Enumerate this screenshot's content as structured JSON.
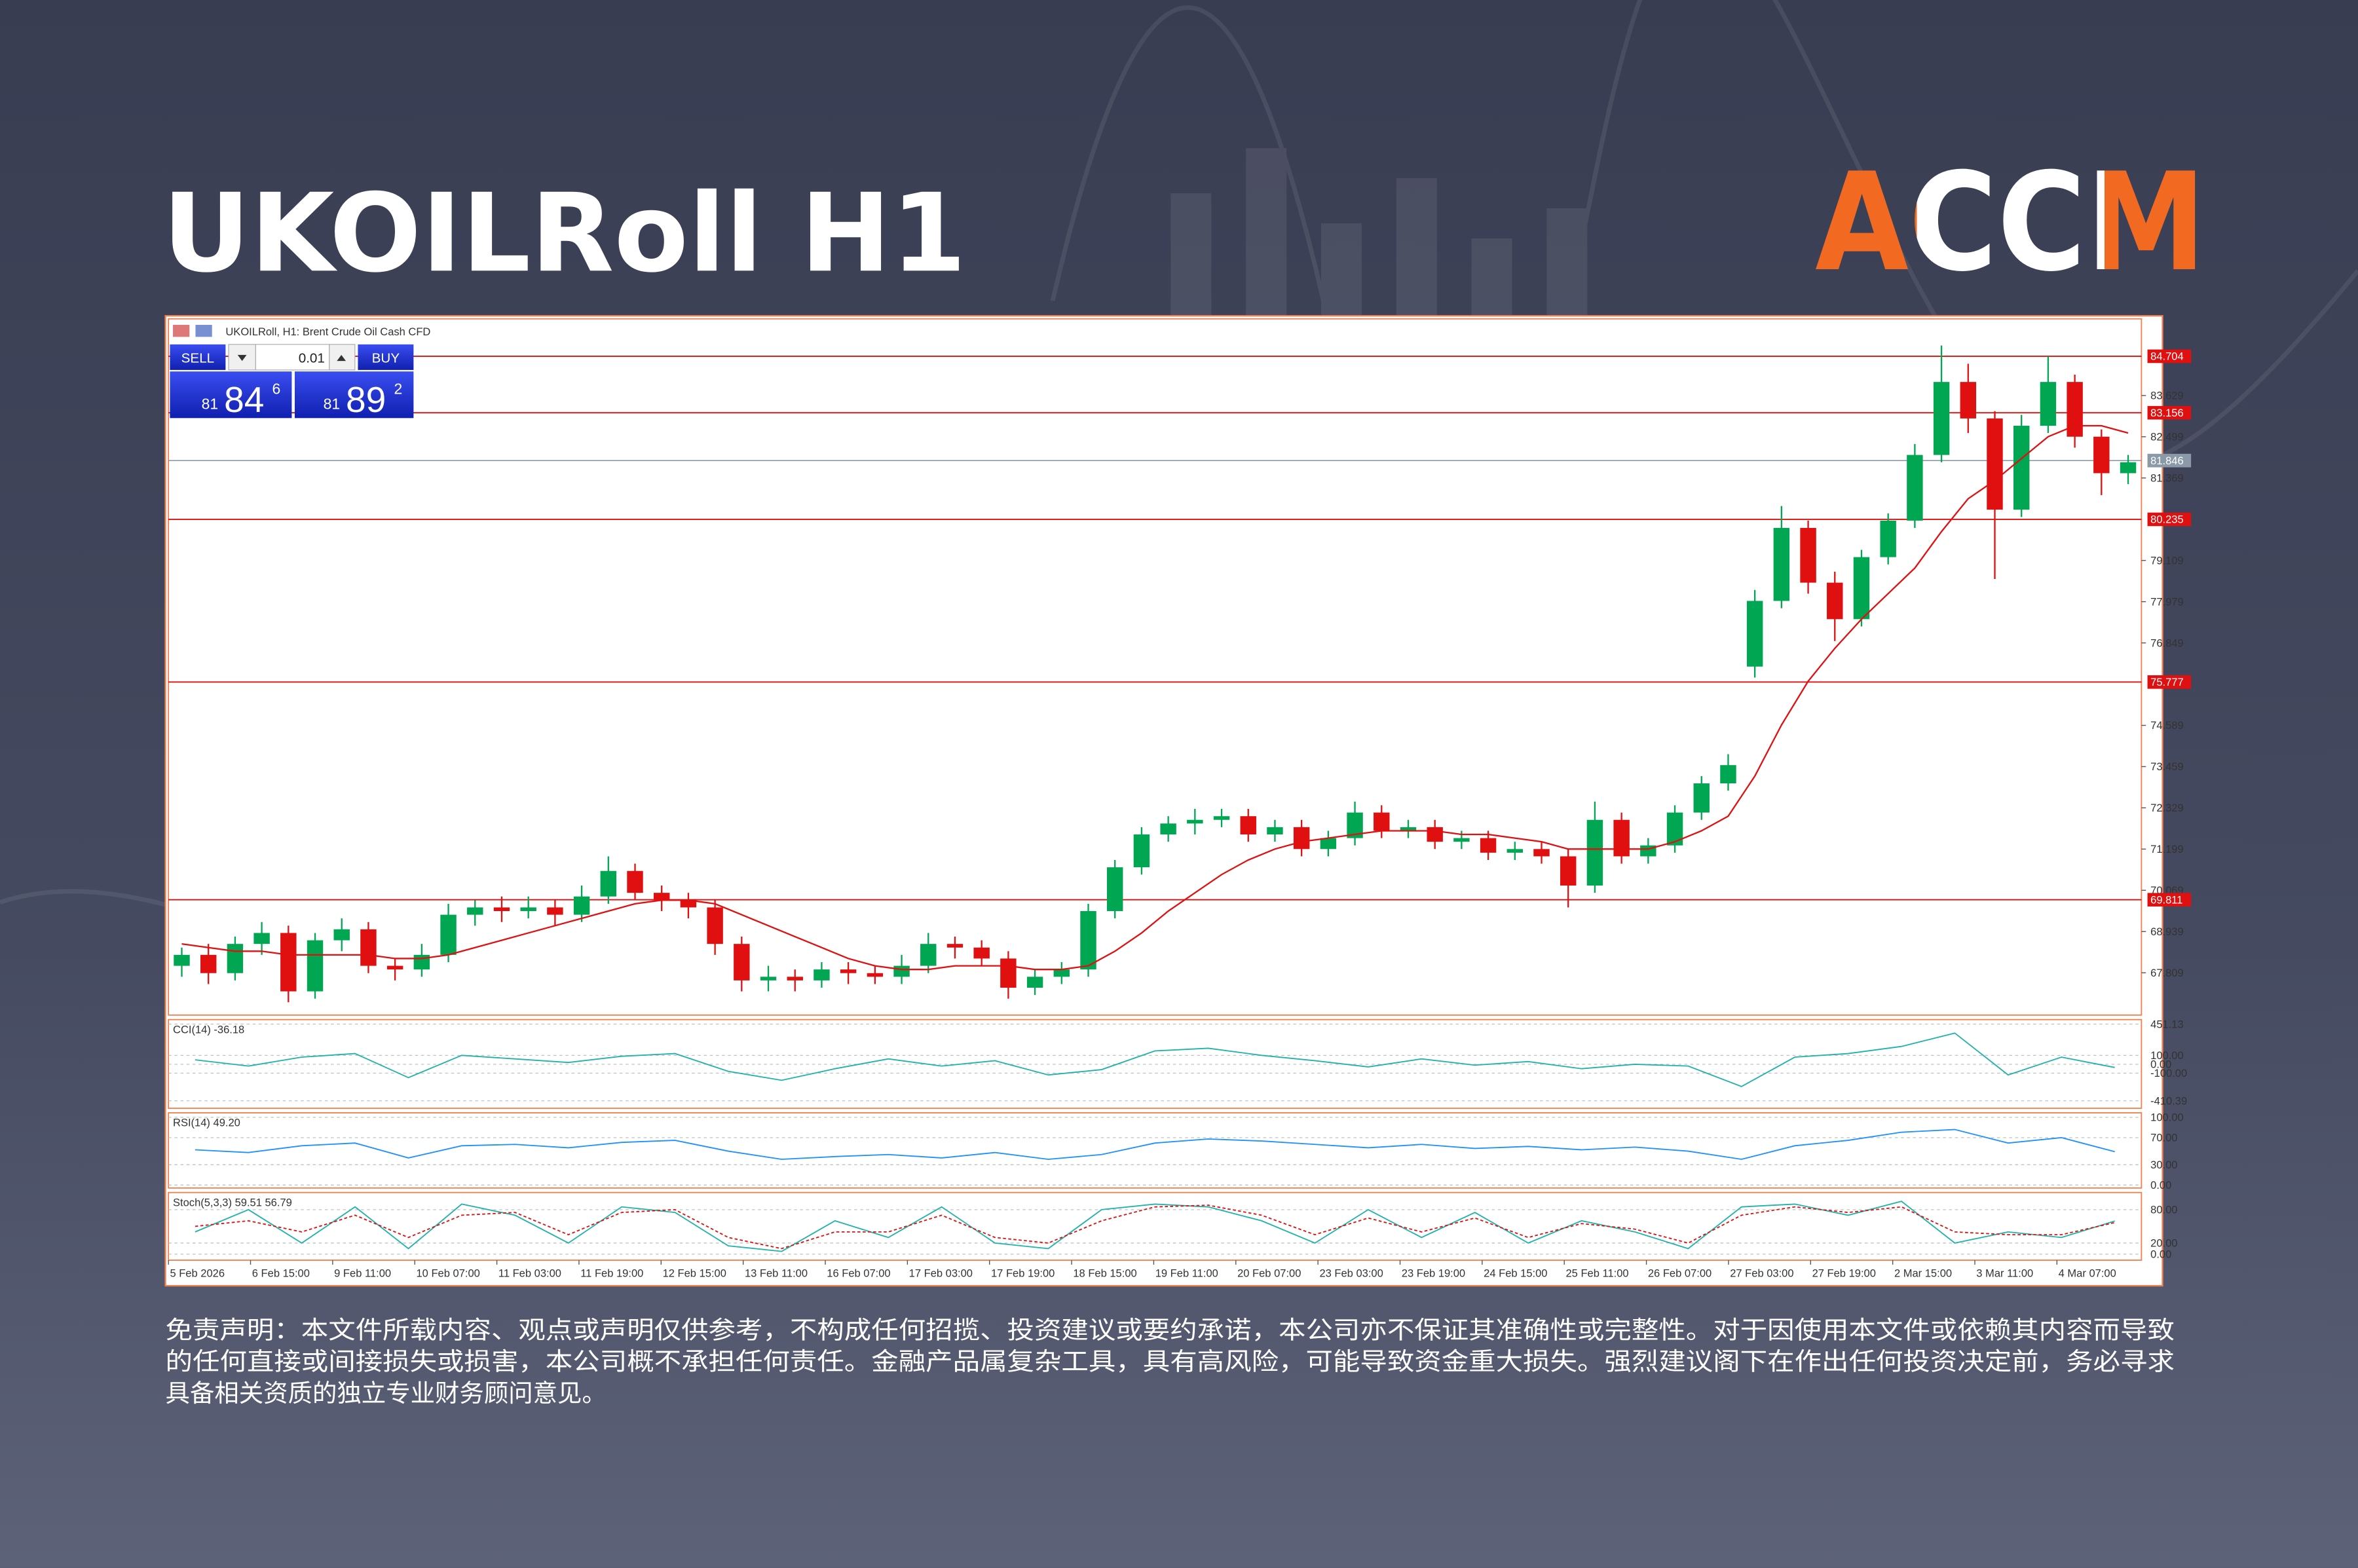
{
  "header": {
    "title": "UKOILRoll H1",
    "logo": "ACCM"
  },
  "disclaimer": [
    "免责声明：本文件所载内容、观点或声明仅供参考，不构成任何招揽、投资建议或要约承诺，本公司亦不保证其准确性或完整性。对于因使用本文件或依赖其内容而导致",
    "的任何直接或间接损失或损害，本公司概不承担任何责任。金融产品属复杂工具，具有高风险，可能导致资金重大损失。强烈建议阁下在作出任何投资决定前，务必寻求",
    "具备相关资质的独立专业财务顾问意见。"
  ],
  "trade_panel": {
    "sell": "SELL",
    "lot": "0.01",
    "buy": "BUY",
    "sell_price": {
      "prefix": "81",
      "big": "84",
      "sup": "6"
    },
    "buy_price": {
      "prefix": "81",
      "big": "89",
      "sup": "2"
    }
  },
  "chart_data": {
    "type": "candlestick",
    "title": "UKOILRoll, H1: Brent Crude Oil Cash CFD",
    "up_color": "#00a651",
    "down_color": "#e01010",
    "candles": {
      "open": [
        68.0,
        68.3,
        67.8,
        68.6,
        68.9,
        67.3,
        68.7,
        69.0,
        68.0,
        67.9,
        68.3,
        69.4,
        69.6,
        69.5,
        69.6,
        69.4,
        69.9,
        70.6,
        70.0,
        69.8,
        69.6,
        68.6,
        67.6,
        67.7,
        67.6,
        67.9,
        67.8,
        67.7,
        68.0,
        68.6,
        68.5,
        68.2,
        67.4,
        67.7,
        67.9,
        69.5,
        70.7,
        71.6,
        71.9,
        72.0,
        72.1,
        71.6,
        71.8,
        71.2,
        71.5,
        72.2,
        71.7,
        71.8,
        71.4,
        71.5,
        71.1,
        71.2,
        71.0,
        70.2,
        72.0,
        71.0,
        71.3,
        72.2,
        73.0,
        76.2,
        78.0,
        80.0,
        78.5,
        77.5,
        79.2,
        80.2,
        82.0,
        84.0,
        83.0,
        80.5,
        82.8,
        84.0,
        82.5,
        81.5
      ],
      "high": [
        68.5,
        68.6,
        68.8,
        69.2,
        69.1,
        68.9,
        69.3,
        69.2,
        68.2,
        68.6,
        69.7,
        69.8,
        69.9,
        69.9,
        69.8,
        70.2,
        71.0,
        70.8,
        70.2,
        70.0,
        69.8,
        68.8,
        68.0,
        67.9,
        68.1,
        68.1,
        68.0,
        68.3,
        68.9,
        68.8,
        68.7,
        68.4,
        67.9,
        68.1,
        69.7,
        70.9,
        71.8,
        72.1,
        72.3,
        72.3,
        72.3,
        72.0,
        72.0,
        71.7,
        72.5,
        72.4,
        72.0,
        72.0,
        71.7,
        71.7,
        71.4,
        71.4,
        71.2,
        72.5,
        72.2,
        71.5,
        72.4,
        73.2,
        73.8,
        78.3,
        80.6,
        80.2,
        78.8,
        79.4,
        80.4,
        82.3,
        85.0,
        84.5,
        83.2,
        83.1,
        84.7,
        84.2,
        82.7,
        82.0
      ],
      "low": [
        67.7,
        67.5,
        67.6,
        68.3,
        67.0,
        67.1,
        68.4,
        67.8,
        67.6,
        67.7,
        68.1,
        69.1,
        69.2,
        69.3,
        69.1,
        69.2,
        69.7,
        69.8,
        69.5,
        69.3,
        68.3,
        67.3,
        67.3,
        67.3,
        67.4,
        67.5,
        67.5,
        67.5,
        67.8,
        68.2,
        68.0,
        67.1,
        67.2,
        67.5,
        67.7,
        69.3,
        70.5,
        71.4,
        71.6,
        71.8,
        71.4,
        71.4,
        71.0,
        71.0,
        71.3,
        71.5,
        71.5,
        71.2,
        71.2,
        70.9,
        70.9,
        70.8,
        69.6,
        70.0,
        70.8,
        70.8,
        71.1,
        72.0,
        72.8,
        75.9,
        77.8,
        78.2,
        76.9,
        77.3,
        79.0,
        80.0,
        81.8,
        82.6,
        78.6,
        80.3,
        82.6,
        82.2,
        80.9,
        81.2
      ],
      "close": [
        68.3,
        67.8,
        68.6,
        68.9,
        67.3,
        68.7,
        69.0,
        68.0,
        67.9,
        68.3,
        69.4,
        69.6,
        69.5,
        69.6,
        69.4,
        69.9,
        70.6,
        70.0,
        69.8,
        69.6,
        68.6,
        67.6,
        67.7,
        67.6,
        67.9,
        67.8,
        67.7,
        68.0,
        68.6,
        68.5,
        68.2,
        67.4,
        67.7,
        67.9,
        69.5,
        70.7,
        71.6,
        71.9,
        72.0,
        72.1,
        71.6,
        71.8,
        71.2,
        71.5,
        72.2,
        71.7,
        71.8,
        71.4,
        71.5,
        71.1,
        71.2,
        71.0,
        70.2,
        72.0,
        71.0,
        71.3,
        72.2,
        73.0,
        73.5,
        78.0,
        80.0,
        78.5,
        77.5,
        79.2,
        80.2,
        82.0,
        84.0,
        83.0,
        80.5,
        82.8,
        84.0,
        82.5,
        81.5,
        81.8
      ]
    },
    "ma": {
      "color": "#e01010",
      "values": [
        68.6,
        68.5,
        68.4,
        68.4,
        68.3,
        68.3,
        68.3,
        68.3,
        68.2,
        68.2,
        68.3,
        68.5,
        68.7,
        68.9,
        69.1,
        69.3,
        69.5,
        69.7,
        69.8,
        69.8,
        69.7,
        69.4,
        69.1,
        68.8,
        68.5,
        68.2,
        68.0,
        67.9,
        67.9,
        68.0,
        68.0,
        68.0,
        67.9,
        67.9,
        68.0,
        68.4,
        68.9,
        69.5,
        70.0,
        70.5,
        70.9,
        71.2,
        71.4,
        71.5,
        71.6,
        71.7,
        71.7,
        71.7,
        71.6,
        71.6,
        71.5,
        71.4,
        71.2,
        71.2,
        71.2,
        71.2,
        71.4,
        71.7,
        72.1,
        73.2,
        74.6,
        75.8,
        76.7,
        77.5,
        78.2,
        78.9,
        79.9,
        80.8,
        81.3,
        81.9,
        82.5,
        82.8,
        82.8,
        82.6
      ]
    },
    "ylim": [
      66.65,
      85.73
    ],
    "yticks": [
      83.629,
      82.499,
      81.369,
      79.109,
      77.979,
      76.849,
      74.589,
      73.459,
      72.329,
      71.199,
      70.069,
      68.939,
      67.809
    ],
    "levels": {
      "color": "#e01010",
      "values": [
        84.704,
        83.156,
        80.235,
        75.777,
        69.811
      ]
    },
    "current_price": {
      "color": "#8a9aa8",
      "value": 81.846
    },
    "xlabels": [
      "5 Feb 2026",
      "6 Feb 15:00",
      "9 Feb 11:00",
      "10 Feb 07:00",
      "11 Feb 03:00",
      "11 Feb 19:00",
      "12 Feb 15:00",
      "13 Feb 11:00",
      "16 Feb 07:00",
      "17 Feb 03:00",
      "17 Feb 19:00",
      "18 Feb 15:00",
      "19 Feb 11:00",
      "20 Feb 07:00",
      "23 Feb 03:00",
      "23 Feb 19:00",
      "24 Feb 15:00",
      "25 Feb 11:00",
      "26 Feb 07:00",
      "27 Feb 03:00",
      "27 Feb 19:00",
      "2 Mar 15:00",
      "3 Mar 11:00",
      "4 Mar 07:00"
    ],
    "panes": [
      {
        "title": "CCI(14) -36.18",
        "ylim": [
          -410.39,
          451.13
        ],
        "yticks": [
          {
            "value": 451.13,
            "label": "451.13"
          },
          {
            "value": 100,
            "label": "100.00"
          },
          {
            "value": 0,
            "label": "0.00"
          },
          {
            "value": -100,
            "label": "-100.00"
          },
          {
            "value": -410.39,
            "label": "-410.39"
          }
        ],
        "series": [
          {
            "color": "#20b2aa",
            "values": [
              50,
              -20,
              80,
              120,
              -150,
              100,
              60,
              20,
              90,
              120,
              -80,
              -180,
              -50,
              60,
              -20,
              40,
              -120,
              -60,
              150,
              180,
              100,
              40,
              -30,
              60,
              -10,
              30,
              -50,
              0,
              -20,
              -250,
              80,
              120,
              200,
              350,
              -120,
              80,
              -36.18
            ]
          }
        ]
      },
      {
        "title": "RSI(14) 49.20",
        "ylim": [
          0,
          100
        ],
        "yticks": [
          {
            "value": 100,
            "label": "100.00"
          },
          {
            "value": 70,
            "label": "70.00"
          },
          {
            "value": 30,
            "label": "30.00"
          },
          {
            "value": 0,
            "label": "0.00"
          }
        ],
        "series": [
          {
            "color": "#1e90ff",
            "values": [
              52,
              48,
              58,
              62,
              40,
              58,
              60,
              55,
              63,
              66,
              50,
              38,
              42,
              45,
              40,
              48,
              38,
              45,
              62,
              68,
              65,
              60,
              55,
              60,
              54,
              57,
              52,
              56,
              50,
              38,
              58,
              66,
              78,
              82,
              62,
              70,
              49.2
            ]
          }
        ]
      },
      {
        "title": "Stoch(5,3,3) 59.51 56.79",
        "ylim": [
          0,
          100
        ],
        "yticks": [
          {
            "value": 80,
            "label": "80.00"
          },
          {
            "value": 20,
            "label": "20.00"
          },
          {
            "value": 0,
            "label": "0.00"
          }
        ],
        "series": [
          {
            "color": "#20b2aa",
            "values": [
              40,
              80,
              20,
              85,
              10,
              90,
              70,
              20,
              85,
              75,
              15,
              5,
              60,
              30,
              85,
              20,
              10,
              80,
              90,
              85,
              60,
              20,
              80,
              30,
              75,
              20,
              60,
              40,
              10,
              85,
              90,
              70,
              95,
              20,
              40,
              30,
              59.51
            ]
          },
          {
            "color": "#e01010",
            "dashed": true,
            "values": [
              50,
              60,
              40,
              70,
              30,
              70,
              75,
              35,
              75,
              80,
              30,
              10,
              40,
              40,
              70,
              30,
              20,
              60,
              85,
              88,
              70,
              35,
              65,
              40,
              65,
              30,
              55,
              45,
              20,
              70,
              85,
              75,
              85,
              40,
              35,
              35,
              56.79
            ]
          }
        ]
      }
    ]
  }
}
